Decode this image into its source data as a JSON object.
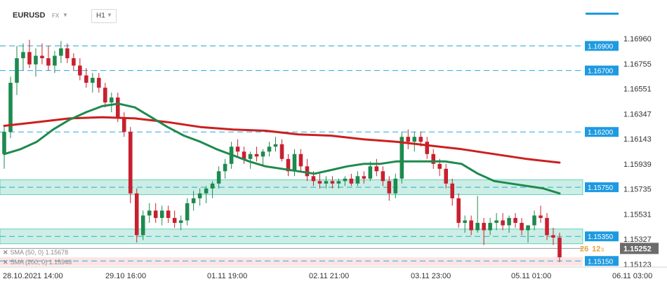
{
  "header": {
    "symbol": "EURUSD",
    "instrument_type": "FX",
    "timeframe": "H1"
  },
  "indicators": [
    {
      "label": "SMA (50, 0) 1.15678",
      "color": "#1e8a4e"
    },
    {
      "label": "SMA (200, 0) 1.15948",
      "color": "#cc1f1f"
    }
  ],
  "countdown": {
    "value": "26",
    "value2": "12"
  },
  "colors": {
    "bull": "#1e8a4e",
    "bear": "#c8202f",
    "sma50": "#1e8a4e",
    "sma200": "#cc1f1f",
    "level_line": "#26a9e0",
    "level_label_bg": "#1e9ae0",
    "zone_fill": "#cdeee4",
    "zone_stroke": "#5fd0c0",
    "low_zone_fill": "#fde4e4",
    "current_price_bg": "#6b6b6b"
  },
  "chart_data": {
    "type": "candlestick",
    "ylim": [
      1.5118,
      1.1698
    ],
    "y_ticks": [
      1.1696,
      1.16755,
      1.16551,
      1.16347,
      1.16143,
      1.15939,
      1.15735,
      1.15531,
      1.15327,
      1.15123
    ],
    "y_tick_labels": [
      "1.16960",
      "1.16755",
      "1.16551",
      "1.16347",
      "1.16143",
      "1.15939",
      "1.15735",
      "1.15531",
      "1.15327",
      "1.15123"
    ],
    "x_tick_labels": [
      "28.10.2021 14:00",
      "29.10 16:00",
      "01.11 19:00",
      "02.11 21:00",
      "03.11 23:00",
      "05.11 01:00",
      "06.11 03:00"
    ],
    "levels": [
      1.169,
      1.167,
      1.162,
      1.1575,
      1.1535,
      1.1515
    ],
    "level_labels": [
      "1.16900",
      "1.16700",
      "1.16200",
      "1.15750",
      "1.15350",
      "1.15150"
    ],
    "zones": [
      {
        "from": 1.1569,
        "to": 1.1581
      },
      {
        "from": 1.1529,
        "to": 1.1541
      }
    ],
    "low_zone": {
      "from": 1.1511,
      "to": 1.1518
    },
    "current_price": 1.15252,
    "current_price_label": "1.15252",
    "candles": [
      [
        1.1602,
        1.1625,
        1.159,
        1.162
      ],
      [
        1.162,
        1.1665,
        1.1615,
        1.166
      ],
      [
        1.166,
        1.169,
        1.165,
        1.168
      ],
      [
        1.168,
        1.1692,
        1.167,
        1.1685
      ],
      [
        1.1685,
        1.1695,
        1.1672,
        1.1675
      ],
      [
        1.1675,
        1.1688,
        1.1665,
        1.1682
      ],
      [
        1.1682,
        1.1692,
        1.1675,
        1.168
      ],
      [
        1.168,
        1.169,
        1.167,
        1.1674
      ],
      [
        1.1674,
        1.1686,
        1.1668,
        1.1682
      ],
      [
        1.1682,
        1.1694,
        1.1676,
        1.1688
      ],
      [
        1.1688,
        1.1692,
        1.1676,
        1.168
      ],
      [
        1.168,
        1.1684,
        1.167,
        1.1674
      ],
      [
        1.1674,
        1.168,
        1.1662,
        1.1666
      ],
      [
        1.1666,
        1.1672,
        1.1656,
        1.166
      ],
      [
        1.166,
        1.1668,
        1.1652,
        1.1664
      ],
      [
        1.1664,
        1.1668,
        1.1652,
        1.1656
      ],
      [
        1.1656,
        1.166,
        1.164,
        1.1644
      ],
      [
        1.1644,
        1.1652,
        1.1636,
        1.1648
      ],
      [
        1.1648,
        1.1652,
        1.1628,
        1.1632
      ],
      [
        1.1632,
        1.1636,
        1.1616,
        1.162
      ],
      [
        1.162,
        1.1624,
        1.1562,
        1.157
      ],
      [
        1.157,
        1.1574,
        1.153,
        1.1536
      ],
      [
        1.1536,
        1.1556,
        1.1532,
        1.1552
      ],
      [
        1.1552,
        1.1562,
        1.1546,
        1.1556
      ],
      [
        1.1556,
        1.1562,
        1.1546,
        1.155
      ],
      [
        1.155,
        1.156,
        1.1544,
        1.1556
      ],
      [
        1.1556,
        1.156,
        1.1546,
        1.155
      ],
      [
        1.155,
        1.1556,
        1.1542,
        1.1546
      ],
      [
        1.1546,
        1.1552,
        1.154,
        1.1548
      ],
      [
        1.1548,
        1.1566,
        1.1544,
        1.1562
      ],
      [
        1.1562,
        1.1572,
        1.1556,
        1.1566
      ],
      [
        1.1566,
        1.1574,
        1.156,
        1.157
      ],
      [
        1.157,
        1.1576,
        1.1562,
        1.1574
      ],
      [
        1.1574,
        1.158,
        1.1566,
        1.1578
      ],
      [
        1.1578,
        1.1592,
        1.1574,
        1.1588
      ],
      [
        1.1588,
        1.1598,
        1.1582,
        1.1594
      ],
      [
        1.1594,
        1.1612,
        1.159,
        1.1608
      ],
      [
        1.1608,
        1.1614,
        1.16,
        1.1604
      ],
      [
        1.1604,
        1.1608,
        1.1594,
        1.1598
      ],
      [
        1.1598,
        1.1604,
        1.159,
        1.1602
      ],
      [
        1.1602,
        1.1608,
        1.1596,
        1.16
      ],
      [
        1.16,
        1.1606,
        1.1592,
        1.1604
      ],
      [
        1.1604,
        1.1612,
        1.16,
        1.1608
      ],
      [
        1.1608,
        1.1616,
        1.1604,
        1.161
      ],
      [
        1.161,
        1.1614,
        1.1596,
        1.1598
      ],
      [
        1.1598,
        1.1602,
        1.1584,
        1.1588
      ],
      [
        1.1588,
        1.1606,
        1.1584,
        1.1602
      ],
      [
        1.1602,
        1.1606,
        1.1588,
        1.1592
      ],
      [
        1.1592,
        1.1598,
        1.158,
        1.1584
      ],
      [
        1.1584,
        1.1588,
        1.1576,
        1.158
      ],
      [
        1.158,
        1.1586,
        1.1574,
        1.1578
      ],
      [
        1.1578,
        1.1584,
        1.1574,
        1.158
      ],
      [
        1.158,
        1.1584,
        1.1574,
        1.1578
      ],
      [
        1.1578,
        1.1582,
        1.1574,
        1.158
      ],
      [
        1.158,
        1.1584,
        1.1576,
        1.1582
      ],
      [
        1.1582,
        1.1586,
        1.1576,
        1.1578
      ],
      [
        1.1578,
        1.1588,
        1.1576,
        1.1584
      ],
      [
        1.1584,
        1.1588,
        1.1578,
        1.1582
      ],
      [
        1.1582,
        1.1596,
        1.158,
        1.1592
      ],
      [
        1.1592,
        1.1598,
        1.1584,
        1.1588
      ],
      [
        1.1588,
        1.1592,
        1.1576,
        1.158
      ],
      [
        1.158,
        1.1584,
        1.1564,
        1.157
      ],
      [
        1.157,
        1.1586,
        1.1566,
        1.1582
      ],
      [
        1.1582,
        1.162,
        1.1578,
        1.1616
      ],
      [
        1.1616,
        1.1622,
        1.1606,
        1.1612
      ],
      [
        1.1612,
        1.162,
        1.1604,
        1.1616
      ],
      [
        1.1616,
        1.162,
        1.1608,
        1.1612
      ],
      [
        1.1612,
        1.1616,
        1.1598,
        1.1602
      ],
      [
        1.1602,
        1.1606,
        1.159,
        1.1594
      ],
      [
        1.1594,
        1.1598,
        1.1584,
        1.159
      ],
      [
        1.159,
        1.1594,
        1.1574,
        1.1578
      ],
      [
        1.1578,
        1.1582,
        1.156,
        1.1566
      ],
      [
        1.1566,
        1.157,
        1.1542,
        1.1546
      ],
      [
        1.1546,
        1.1552,
        1.1538,
        1.1548
      ],
      [
        1.1548,
        1.1552,
        1.1536,
        1.154
      ],
      [
        1.154,
        1.1568,
        1.1538,
        1.1546
      ],
      [
        1.1546,
        1.155,
        1.1528,
        1.154
      ],
      [
        1.154,
        1.155,
        1.1536,
        1.1546
      ],
      [
        1.1546,
        1.1554,
        1.154,
        1.1548
      ],
      [
        1.1548,
        1.1554,
        1.154,
        1.1544
      ],
      [
        1.1544,
        1.1552,
        1.1538,
        1.155
      ],
      [
        1.155,
        1.1554,
        1.1542,
        1.1546
      ],
      [
        1.1546,
        1.155,
        1.1536,
        1.154
      ],
      [
        1.154,
        1.1544,
        1.153,
        1.1544
      ],
      [
        1.1544,
        1.1556,
        1.154,
        1.1552
      ],
      [
        1.1552,
        1.156,
        1.1546,
        1.155
      ],
      [
        1.155,
        1.1554,
        1.1532,
        1.1536
      ],
      [
        1.1536,
        1.1542,
        1.1528,
        1.1534
      ],
      [
        1.1534,
        1.1538,
        1.1514,
        1.1518
      ]
    ],
    "sma50": [
      [
        0,
        1.1602
      ],
      [
        6,
        1.1606
      ],
      [
        12,
        1.1612
      ],
      [
        18,
        1.1622
      ],
      [
        24,
        1.163
      ],
      [
        30,
        1.1636
      ],
      [
        36,
        1.1641
      ],
      [
        42,
        1.1643
      ],
      [
        48,
        1.164
      ],
      [
        54,
        1.1632
      ],
      [
        60,
        1.1624
      ],
      [
        66,
        1.1617
      ],
      [
        72,
        1.1612
      ],
      [
        78,
        1.1606
      ],
      [
        84,
        1.1601
      ],
      [
        90,
        1.1596
      ],
      [
        96,
        1.1592
      ],
      [
        102,
        1.159
      ],
      [
        108,
        1.1588
      ],
      [
        114,
        1.1586
      ],
      [
        120,
        1.1589
      ],
      [
        126,
        1.1592
      ],
      [
        132,
        1.1594
      ],
      [
        138,
        1.1594
      ],
      [
        144,
        1.1596
      ],
      [
        150,
        1.1596
      ],
      [
        156,
        1.1596
      ],
      [
        162,
        1.1596
      ],
      [
        168,
        1.1594
      ],
      [
        174,
        1.1586
      ],
      [
        180,
        1.158
      ],
      [
        186,
        1.1578
      ],
      [
        192,
        1.1576
      ],
      [
        198,
        1.1574
      ],
      [
        204,
        1.157
      ]
    ],
    "sma200": [
      [
        0,
        1.1625
      ],
      [
        12,
        1.1628
      ],
      [
        24,
        1.1631
      ],
      [
        36,
        1.1632
      ],
      [
        48,
        1.1631
      ],
      [
        60,
        1.1628
      ],
      [
        72,
        1.1624
      ],
      [
        84,
        1.1622
      ],
      [
        96,
        1.1621
      ],
      [
        108,
        1.1618
      ],
      [
        120,
        1.1617
      ],
      [
        132,
        1.1614
      ],
      [
        144,
        1.1612
      ],
      [
        156,
        1.1609
      ],
      [
        168,
        1.1606
      ],
      [
        180,
        1.1602
      ],
      [
        192,
        1.1598
      ],
      [
        204,
        1.1595
      ]
    ]
  }
}
